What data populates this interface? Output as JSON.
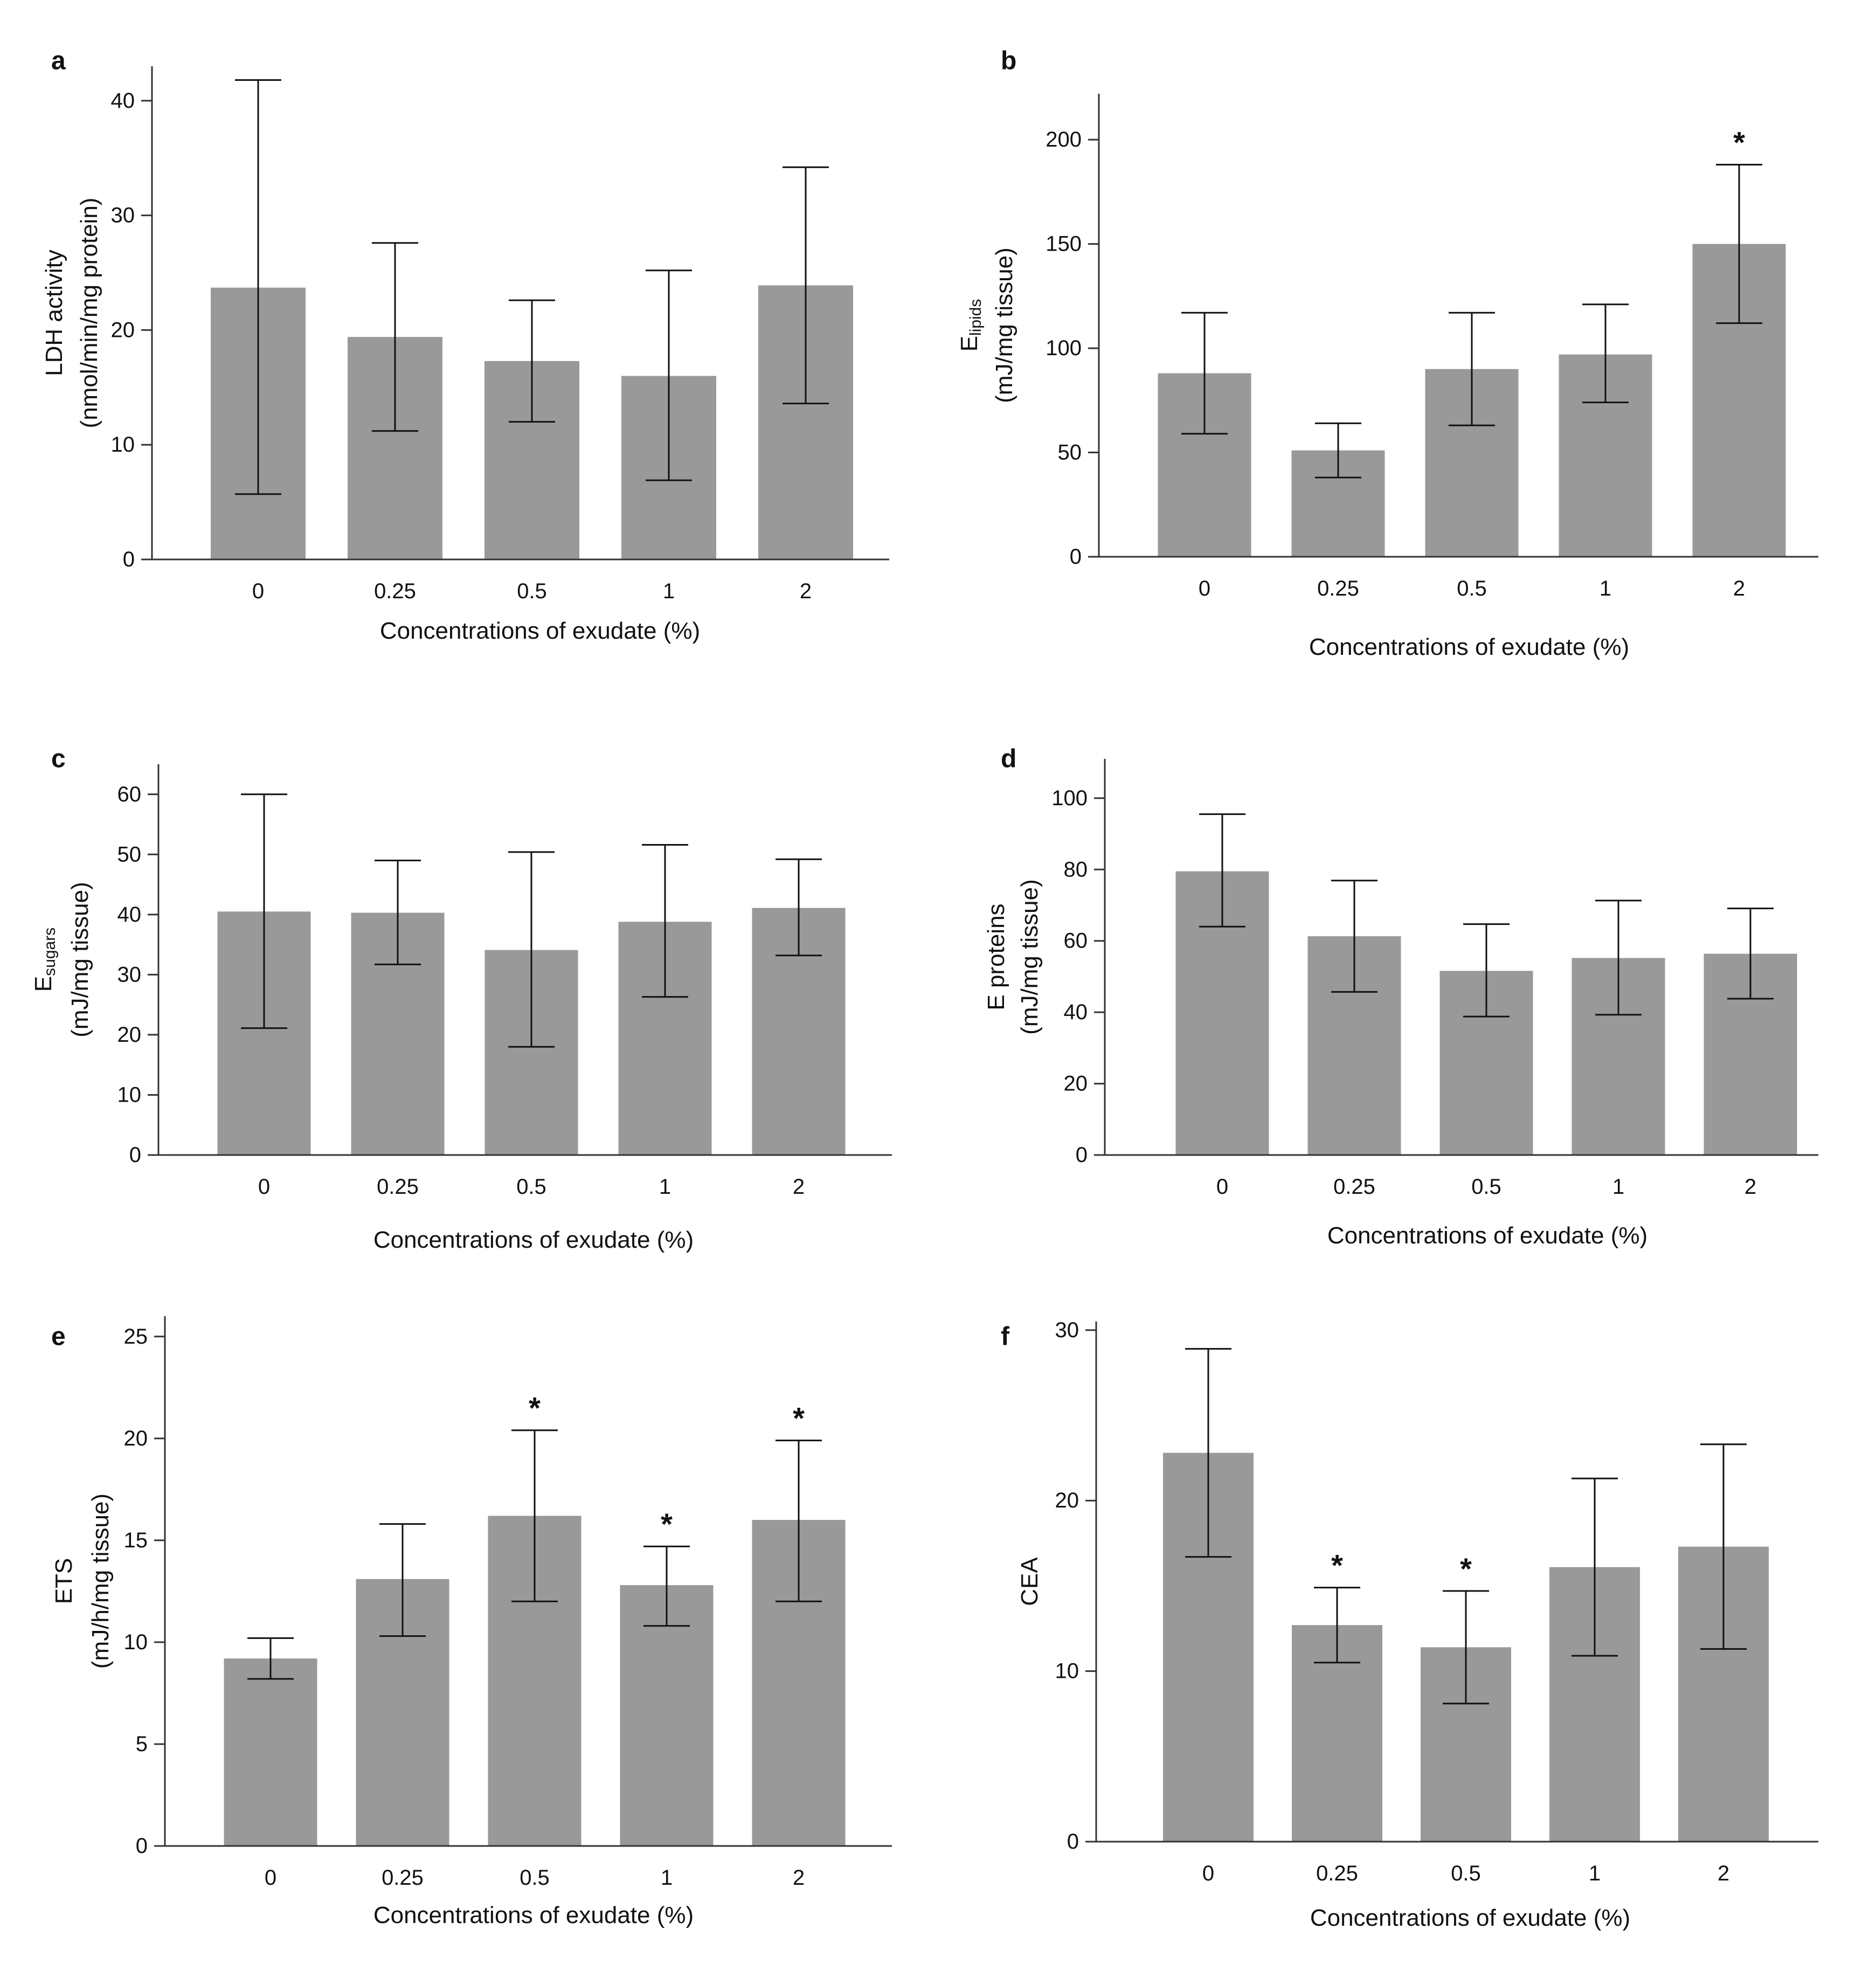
{
  "figure": {
    "bar_color": "#999999",
    "axis_color": "#333333"
  },
  "chart_data": [
    {
      "panel": "a",
      "type": "bar",
      "categories": [
        "0",
        "0.25",
        "0.5",
        "1",
        "2"
      ],
      "values": [
        23.7,
        19.4,
        17.3,
        16.0,
        23.9
      ],
      "error_low": [
        5.7,
        11.2,
        12.0,
        6.9,
        13.6
      ],
      "error_high": [
        41.8,
        27.6,
        22.6,
        25.2,
        34.2
      ],
      "significance": [
        "",
        "",
        "",
        "",
        ""
      ],
      "yticks": [
        0,
        10,
        20,
        30,
        40
      ],
      "ylim": [
        0,
        43
      ],
      "xlabel": "Concentrations of exudate (%)",
      "ylabel_lines": [
        "LDH activity",
        "(nmol/min/mg protein)"
      ]
    },
    {
      "panel": "b",
      "type": "bar",
      "categories": [
        "0",
        "0.25",
        "0.5",
        "1",
        "2"
      ],
      "values": [
        88,
        51,
        90,
        97,
        150
      ],
      "error_low": [
        59,
        38,
        63,
        74,
        112
      ],
      "error_high": [
        117,
        64,
        117,
        121,
        188
      ],
      "significance": [
        "",
        "",
        "",
        "",
        "*"
      ],
      "yticks": [
        0,
        50,
        100,
        150,
        200
      ],
      "ylim": [
        0,
        222
      ],
      "xlabel": "Concentrations of exudate (%)",
      "ylabel_lines": [
        "E",
        "(mJ/mg tissue)"
      ],
      "ylabel_subscript": "lipids"
    },
    {
      "panel": "c",
      "type": "bar",
      "categories": [
        "0",
        "0.25",
        "0.5",
        "1",
        "2"
      ],
      "values": [
        40.5,
        40.3,
        34.1,
        38.8,
        41.1
      ],
      "error_low": [
        21.1,
        31.7,
        18.0,
        26.3,
        33.2
      ],
      "error_high": [
        60.0,
        49.0,
        50.4,
        51.6,
        49.2
      ],
      "significance": [
        "",
        "",
        "",
        "",
        ""
      ],
      "yticks": [
        0,
        10,
        20,
        30,
        40,
        50,
        60
      ],
      "ylim": [
        0,
        65
      ],
      "xlabel": "Concentrations of exudate (%)",
      "ylabel_lines": [
        "E",
        "(mJ/mg tissue)"
      ],
      "ylabel_subscript": "sugars"
    },
    {
      "panel": "d",
      "type": "bar",
      "categories": [
        "0",
        "0.25",
        "0.5",
        "1",
        "2"
      ],
      "values": [
        79.5,
        61.3,
        51.6,
        55.2,
        56.4
      ],
      "error_low": [
        64.0,
        45.7,
        38.8,
        39.3,
        43.8
      ],
      "error_high": [
        95.5,
        76.9,
        64.7,
        71.3,
        69.1
      ],
      "significance": [
        "",
        "",
        "",
        "",
        ""
      ],
      "yticks": [
        0,
        20,
        40,
        60,
        80,
        100
      ],
      "ylim": [
        0,
        111
      ],
      "xlabel": "Concentrations of exudate (%)",
      "ylabel_lines": [
        "E proteins",
        "(mJ/mg tissue)"
      ]
    },
    {
      "panel": "e",
      "type": "bar",
      "categories": [
        "0",
        "0.25",
        "0.5",
        "1",
        "2"
      ],
      "values": [
        9.2,
        13.1,
        16.2,
        12.8,
        16.0
      ],
      "error_low": [
        8.2,
        10.3,
        12.0,
        10.8,
        12.0
      ],
      "error_high": [
        10.2,
        15.8,
        20.4,
        14.7,
        19.9
      ],
      "significance": [
        "",
        "",
        "*",
        "*",
        "*"
      ],
      "yticks": [
        0,
        5,
        10,
        15,
        20,
        25
      ],
      "ylim": [
        0,
        26
      ],
      "xlabel": "Concentrations of exudate (%)",
      "ylabel_lines": [
        "ETS",
        "(mJ/h/mg tissue)"
      ]
    },
    {
      "panel": "f",
      "type": "bar",
      "categories": [
        "0",
        "0.25",
        "0.5",
        "1",
        "2"
      ],
      "values": [
        22.8,
        12.7,
        11.4,
        16.1,
        17.3
      ],
      "error_low": [
        16.7,
        10.5,
        8.1,
        10.9,
        11.3
      ],
      "error_high": [
        28.9,
        14.9,
        14.7,
        21.3,
        23.3
      ],
      "significance": [
        "",
        "*",
        "*",
        "",
        ""
      ],
      "yticks": [
        0,
        10,
        20,
        30
      ],
      "ylim": [
        0,
        30.5
      ],
      "xlabel": "Concentrations of exudate (%)",
      "ylabel_lines": [
        "CEA"
      ]
    }
  ]
}
